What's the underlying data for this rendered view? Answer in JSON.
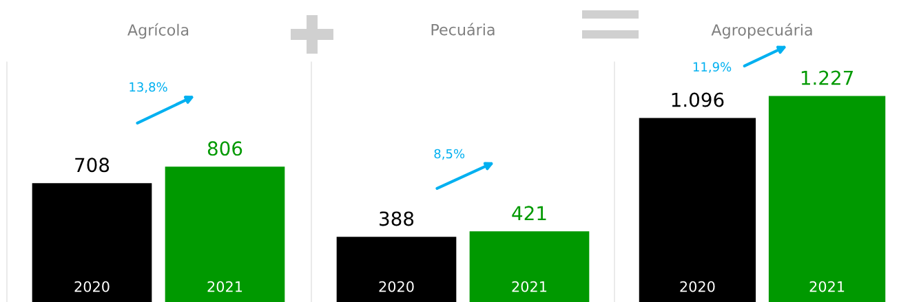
{
  "chart_data": [
    {
      "type": "bar",
      "title": "Agrícola",
      "categories": [
        "2020",
        "2021"
      ],
      "values": [
        708,
        806
      ],
      "colors": [
        "#000000",
        "#009900"
      ],
      "value_labels": [
        "708",
        "806"
      ],
      "annotations": [
        "13,8%"
      ]
    },
    {
      "type": "bar",
      "title": "Pecuária",
      "categories": [
        "2020",
        "2021"
      ],
      "values": [
        388,
        421
      ],
      "colors": [
        "#000000",
        "#009900"
      ],
      "value_labels": [
        "388",
        "421"
      ],
      "annotations": [
        "8,5%"
      ]
    },
    {
      "type": "bar",
      "title": "Agropecuária",
      "categories": [
        "2020",
        "2021"
      ],
      "values": [
        1096,
        1227
      ],
      "colors": [
        "#000000",
        "#009900"
      ],
      "value_labels": [
        "1.096",
        "1.227"
      ],
      "annotations": [
        "11,9%"
      ]
    }
  ]
}
